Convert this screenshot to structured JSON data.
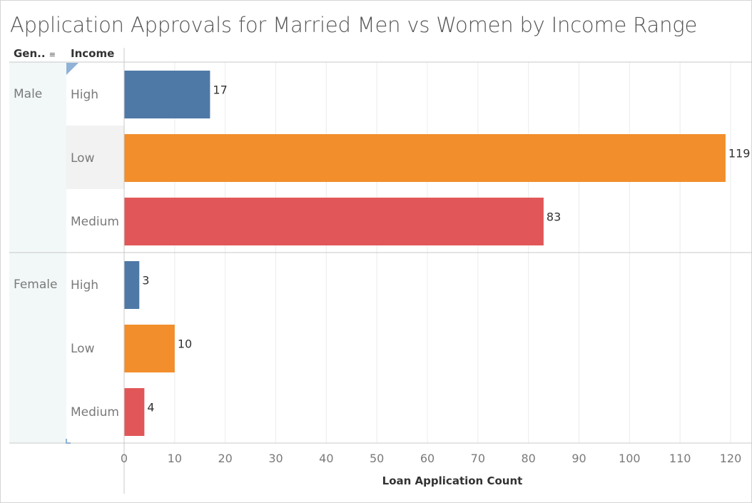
{
  "title": "Application Approvals for Married Men vs Women by Income Range",
  "headers": {
    "gender": "Gen..",
    "income": "Income",
    "sort_icon": "sort-icon"
  },
  "colors": {
    "High": "#4e79a7",
    "Low": "#f28e2b",
    "Medium": "#e15759",
    "pane": "#f2f8f8",
    "highlight": "#f2f2f2",
    "grid": "#ececec"
  },
  "chart_data": {
    "type": "bar",
    "orientation": "horizontal",
    "xlabel": "Loan Application Count",
    "xlim": [
      0,
      120
    ],
    "xticks": [
      0,
      10,
      20,
      30,
      40,
      50,
      60,
      70,
      80,
      90,
      100,
      110,
      120
    ],
    "grid": true,
    "groups": [
      {
        "name": "Male",
        "bars": [
          {
            "category": "High",
            "value": 17
          },
          {
            "category": "Low",
            "value": 119
          },
          {
            "category": "Medium",
            "value": 83
          }
        ]
      },
      {
        "name": "Female",
        "bars": [
          {
            "category": "High",
            "value": 3
          },
          {
            "category": "Low",
            "value": 10
          },
          {
            "category": "Medium",
            "value": 4
          }
        ]
      }
    ]
  }
}
